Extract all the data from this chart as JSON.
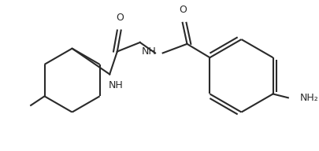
{
  "bg_color": "#ffffff",
  "line_color": "#2a2a2a",
  "text_color": "#2a2a2a",
  "lw": 1.5,
  "figsize": [
    4.06,
    1.92
  ],
  "dpi": 100,
  "xlim": [
    0,
    406
  ],
  "ylim": [
    0,
    192
  ]
}
